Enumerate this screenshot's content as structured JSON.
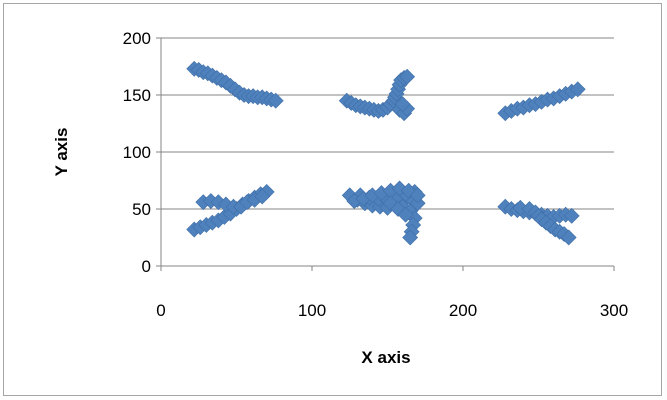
{
  "chart_data": {
    "type": "scatter",
    "title": "",
    "xlabel": "X axis",
    "ylabel": "Y axis",
    "xlim": [
      0,
      300
    ],
    "ylim": [
      0,
      200
    ],
    "x_ticks": [
      0,
      100,
      200,
      300
    ],
    "y_ticks": [
      0,
      50,
      100,
      150,
      200
    ],
    "x_tick_labels": [
      "0",
      "100",
      "200",
      "300"
    ],
    "y_tick_labels": [
      "0",
      "50",
      "100",
      "150",
      "200"
    ],
    "grid": "horizontal",
    "legend": "none",
    "marker": "diamond",
    "series_color": "#4f81bd",
    "series": [
      {
        "points": [
          [
            22,
            173
          ],
          [
            25,
            172
          ],
          [
            28,
            170
          ],
          [
            31,
            169
          ],
          [
            34,
            167
          ],
          [
            37,
            165
          ],
          [
            40,
            163
          ],
          [
            43,
            161
          ],
          [
            46,
            158
          ],
          [
            49,
            155
          ],
          [
            52,
            152
          ],
          [
            55,
            150
          ],
          [
            58,
            149
          ],
          [
            61,
            149
          ],
          [
            64,
            148
          ],
          [
            67,
            148
          ],
          [
            70,
            147
          ],
          [
            73,
            146
          ],
          [
            76,
            145
          ],
          [
            123,
            145
          ],
          [
            126,
            143
          ],
          [
            129,
            141
          ],
          [
            132,
            140
          ],
          [
            135,
            139
          ],
          [
            138,
            138
          ],
          [
            141,
            137
          ],
          [
            144,
            136
          ],
          [
            147,
            137
          ],
          [
            150,
            139
          ],
          [
            152,
            142
          ],
          [
            154,
            145
          ],
          [
            155,
            148
          ],
          [
            156,
            151
          ],
          [
            157,
            155
          ],
          [
            158,
            159
          ],
          [
            159,
            163
          ],
          [
            161,
            165
          ],
          [
            163,
            166
          ],
          [
            158,
            137
          ],
          [
            161,
            134
          ],
          [
            163,
            138
          ],
          [
            160,
            142
          ],
          [
            228,
            134
          ],
          [
            232,
            136
          ],
          [
            236,
            138
          ],
          [
            240,
            139
          ],
          [
            244,
            141
          ],
          [
            248,
            142
          ],
          [
            252,
            144
          ],
          [
            256,
            146
          ],
          [
            260,
            147
          ],
          [
            264,
            149
          ],
          [
            268,
            151
          ],
          [
            272,
            153
          ],
          [
            276,
            155
          ],
          [
            22,
            32
          ],
          [
            26,
            34
          ],
          [
            30,
            36
          ],
          [
            34,
            38
          ],
          [
            38,
            40
          ],
          [
            42,
            43
          ],
          [
            46,
            46
          ],
          [
            50,
            50
          ],
          [
            54,
            54
          ],
          [
            58,
            57
          ],
          [
            62,
            60
          ],
          [
            66,
            63
          ],
          [
            70,
            65
          ],
          [
            28,
            56
          ],
          [
            33,
            57
          ],
          [
            38,
            56
          ],
          [
            43,
            54
          ],
          [
            48,
            52
          ],
          [
            53,
            52
          ],
          [
            57,
            56
          ],
          [
            62,
            58
          ],
          [
            67,
            61
          ],
          [
            125,
            62
          ],
          [
            130,
            58
          ],
          [
            135,
            55
          ],
          [
            140,
            53
          ],
          [
            145,
            52
          ],
          [
            150,
            51
          ],
          [
            155,
            53
          ],
          [
            160,
            56
          ],
          [
            165,
            60
          ],
          [
            170,
            55
          ],
          [
            132,
            62
          ],
          [
            138,
            60
          ],
          [
            144,
            59
          ],
          [
            150,
            58
          ],
          [
            156,
            60
          ],
          [
            162,
            63
          ],
          [
            168,
            65
          ],
          [
            128,
            57
          ],
          [
            134,
            59
          ],
          [
            140,
            62
          ],
          [
            146,
            64
          ],
          [
            152,
            66
          ],
          [
            158,
            68
          ],
          [
            164,
            66
          ],
          [
            170,
            62
          ],
          [
            160,
            52
          ],
          [
            165,
            48
          ],
          [
            168,
            42
          ],
          [
            167,
            36
          ],
          [
            166,
            30
          ],
          [
            165,
            25
          ],
          [
            152,
            55
          ],
          [
            157,
            50
          ],
          [
            162,
            45
          ],
          [
            228,
            52
          ],
          [
            232,
            50
          ],
          [
            236,
            49
          ],
          [
            240,
            48
          ],
          [
            244,
            47
          ],
          [
            248,
            46
          ],
          [
            252,
            45
          ],
          [
            256,
            44
          ],
          [
            260,
            43
          ],
          [
            264,
            44
          ],
          [
            268,
            45
          ],
          [
            272,
            44
          ],
          [
            238,
            51
          ],
          [
            244,
            50
          ],
          [
            248,
            47
          ],
          [
            250,
            44
          ],
          [
            252,
            41
          ],
          [
            255,
            38
          ],
          [
            258,
            35
          ],
          [
            261,
            32
          ],
          [
            264,
            30
          ],
          [
            267,
            28
          ],
          [
            270,
            25
          ]
        ]
      }
    ]
  }
}
